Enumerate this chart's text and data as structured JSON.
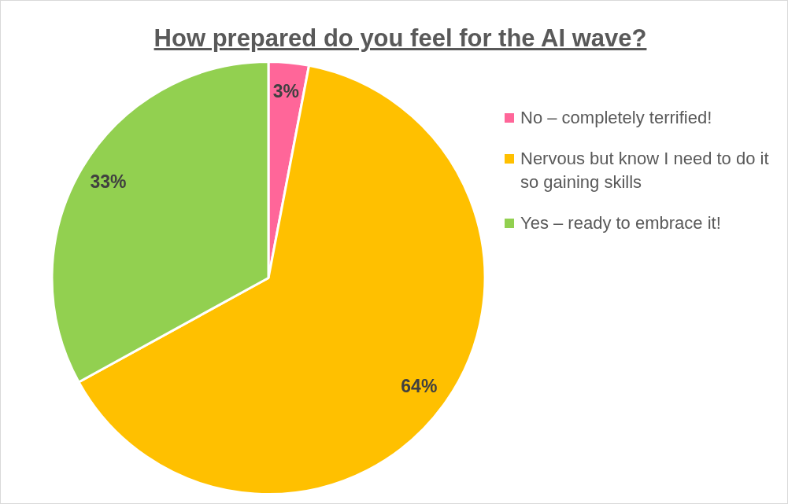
{
  "chart_data": {
    "type": "pie",
    "title": "How prepared do you feel for the AI wave?",
    "categories": [
      "No – completely terrified!",
      "Nervous but know I need to do it so gaining skills",
      "Yes – ready to embrace it!"
    ],
    "values": [
      3,
      64,
      33
    ],
    "colors": [
      "#ff6699",
      "#ffc000",
      "#92d050"
    ],
    "value_labels": [
      "3%",
      "64%",
      "33%"
    ],
    "legend": "right"
  }
}
